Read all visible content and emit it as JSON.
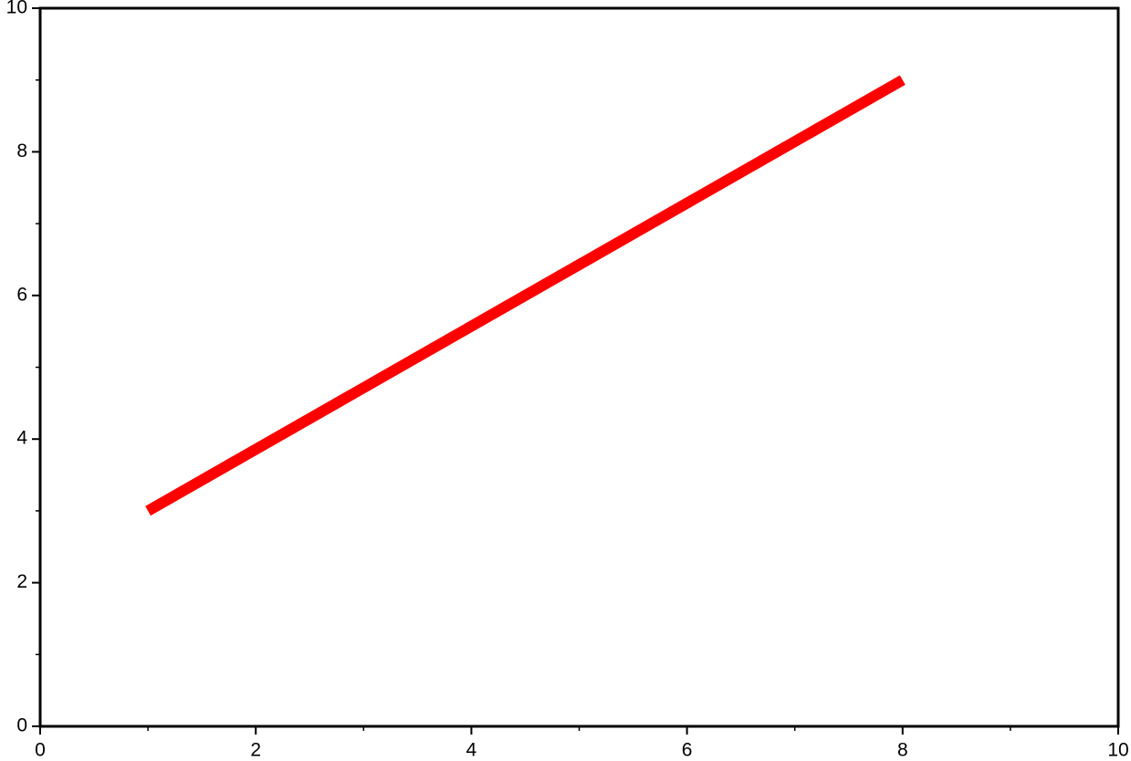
{
  "chart_data": {
    "type": "line",
    "x": [
      1,
      8
    ],
    "values": [
      3,
      9
    ],
    "color": "#ff0000",
    "xlim": [
      0,
      10
    ],
    "ylim": [
      0,
      10
    ],
    "xticks": [
      0,
      2,
      4,
      6,
      8,
      10
    ],
    "yticks": [
      0,
      2,
      4,
      6,
      8,
      10
    ],
    "xminorticks": [
      1,
      3,
      5,
      7,
      9
    ],
    "yminorticks": [
      1,
      3,
      5,
      7,
      9
    ]
  }
}
